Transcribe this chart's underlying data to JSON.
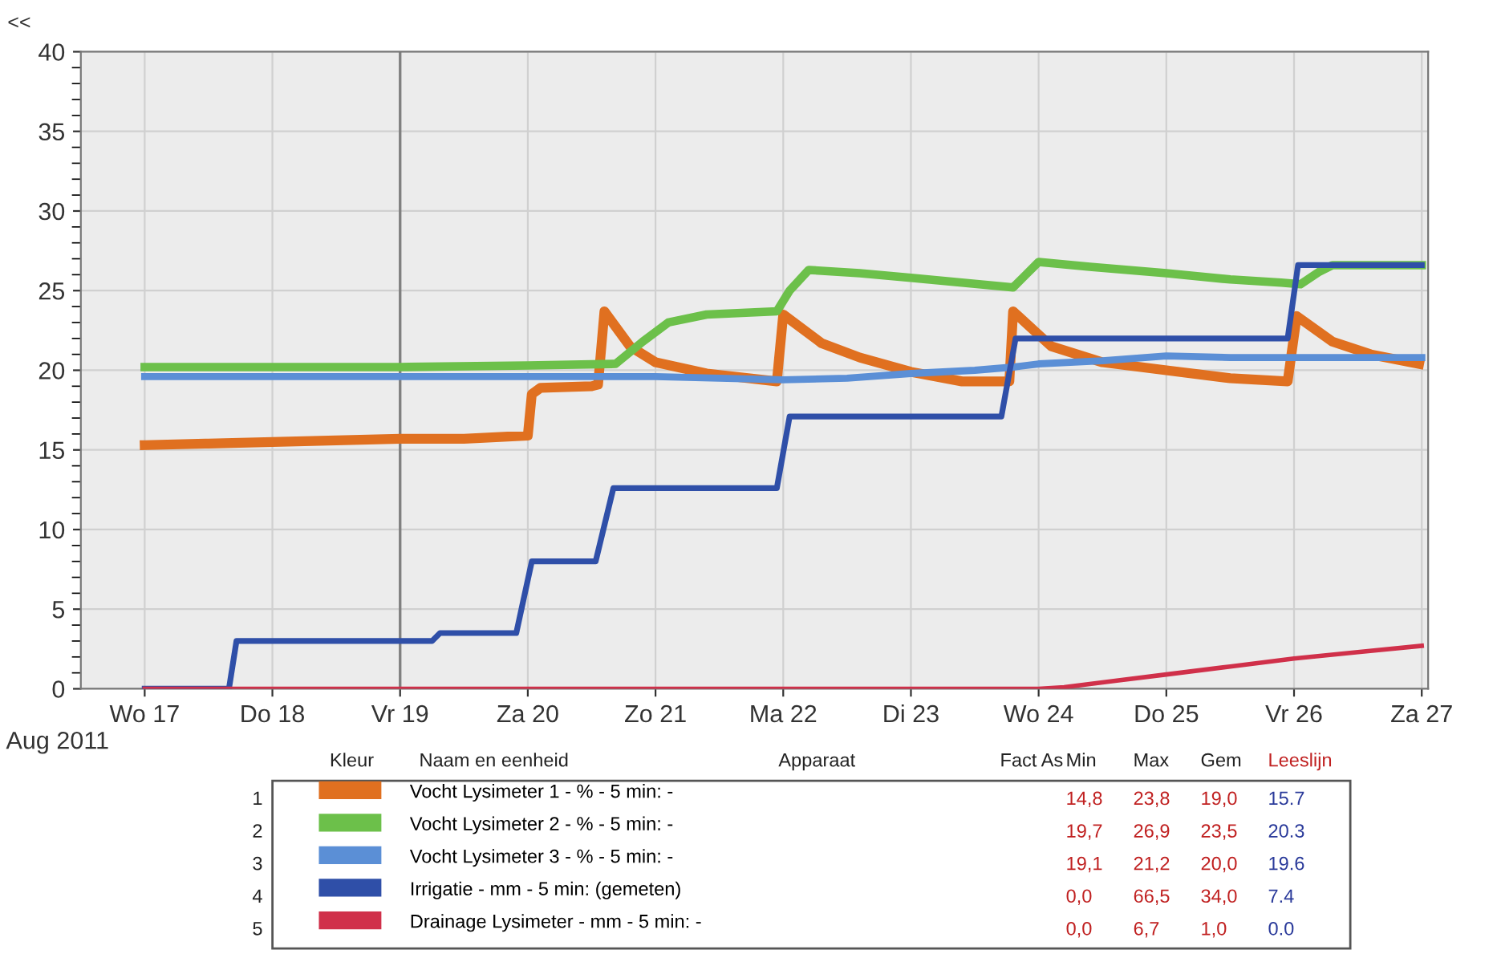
{
  "chart_data": {
    "type": "line",
    "xlim": [
      "2011-08-16T12:00",
      "2011-08-27T01:12"
    ],
    "ylim": [
      0,
      40
    ],
    "xticks": [
      {
        "value": "2011-08-17",
        "label": "Wo 17"
      },
      {
        "value": "2011-08-18",
        "label": "Do 18"
      },
      {
        "value": "2011-08-19",
        "label": "Vr 19"
      },
      {
        "value": "2011-08-20",
        "label": "Za 20"
      },
      {
        "value": "2011-08-21",
        "label": "Zo 21"
      },
      {
        "value": "2011-08-22",
        "label": "Ma 22"
      },
      {
        "value": "2011-08-23",
        "label": "Di 23"
      },
      {
        "value": "2011-08-24",
        "label": "Wo 24"
      },
      {
        "value": "2011-08-25",
        "label": "Do 25"
      },
      {
        "value": "2011-08-26",
        "label": "Vr 26"
      },
      {
        "value": "2011-08-27",
        "label": "Za 27"
      }
    ],
    "yticks": [
      0,
      5,
      10,
      15,
      20,
      25,
      30,
      35,
      40
    ],
    "grid": true,
    "legend": "bottom",
    "ref_lines": [
      {
        "axis": "x",
        "value": "2011-08-19",
        "color": "#808080"
      }
    ],
    "series": [
      {
        "name": "Vocht Lysimeter 1 - % - 5 min: -",
        "color": "#e07020",
        "x": [
          "2011-08-17",
          "2011-08-17T12:00",
          "2011-08-18",
          "2011-08-18T12:00",
          "2011-08-19",
          "2011-08-19T12:00",
          "2011-08-20",
          "2011-08-20T00:45",
          "2011-08-20T02:25",
          "2011-08-20T12:00",
          "2011-08-20T13:12",
          "2011-08-20T14:24",
          "2011-08-20T19:12",
          "2011-08-21",
          "2011-08-21T09:36",
          "2011-08-21T22:48",
          "2011-08-22",
          "2011-08-22T07:12",
          "2011-08-22T14:24",
          "2011-08-23",
          "2011-08-23T09:36",
          "2011-08-23T18:30",
          "2011-08-23T19:12",
          "2011-08-24T02:24",
          "2011-08-24T12:00",
          "2011-08-25",
          "2011-08-25T12:00",
          "2011-08-25T22:48",
          "2011-08-26T00:30",
          "2011-08-26T07:12",
          "2011-08-26T14:24",
          "2011-08-26T23:30"
        ],
        "values": [
          15.3,
          15.4,
          15.5,
          15.6,
          15.7,
          15.7,
          15.9,
          18.5,
          18.9,
          19.0,
          19.1,
          23.7,
          21.5,
          20.5,
          19.8,
          19.3,
          23.5,
          21.7,
          20.8,
          19.9,
          19.3,
          19.3,
          23.7,
          21.5,
          20.5,
          20.0,
          19.5,
          19.3,
          23.4,
          21.8,
          21.0,
          20.4
        ]
      },
      {
        "name": "Vocht Lysimeter 2 - % - 5 min: -",
        "color": "#6cc04a",
        "x": [
          "2011-08-17",
          "2011-08-18",
          "2011-08-19",
          "2011-08-20",
          "2011-08-20T16:30",
          "2011-08-20T21:36",
          "2011-08-21T02:24",
          "2011-08-21T09:36",
          "2011-08-21T22:48",
          "2011-08-22T01:12",
          "2011-08-22T04:48",
          "2011-08-22T14:24",
          "2011-08-23",
          "2011-08-23T09:36",
          "2011-08-23T19:12",
          "2011-08-23T21:36",
          "2011-08-24",
          "2011-08-24T09:36",
          "2011-08-25",
          "2011-08-25T12:00",
          "2011-08-25T21:36",
          "2011-08-26T01:12",
          "2011-08-26T04:48",
          "2011-08-26T07:12",
          "2011-08-26T14:24",
          "2011-08-27"
        ],
        "values": [
          20.2,
          20.2,
          20.2,
          20.3,
          20.4,
          21.8,
          23.0,
          23.5,
          23.7,
          25.0,
          26.3,
          26.1,
          25.8,
          25.5,
          25.2,
          26.0,
          26.8,
          26.5,
          26.1,
          25.7,
          25.5,
          25.4,
          26.2,
          26.6,
          26.6,
          26.6
        ]
      },
      {
        "name": "Vocht Lysimeter 3 - % - 5 min: -",
        "color": "#5b8fd6",
        "x": [
          "2011-08-17",
          "2011-08-18",
          "2011-08-19",
          "2011-08-20",
          "2011-08-21",
          "2011-08-21T12:00",
          "2011-08-22",
          "2011-08-22T12:00",
          "2011-08-23",
          "2011-08-23T12:00",
          "2011-08-23T19:12",
          "2011-08-24",
          "2011-08-24T12:00",
          "2011-08-25",
          "2011-08-25T12:00",
          "2011-08-26",
          "2011-08-26T12:00",
          "2011-08-27"
        ],
        "values": [
          19.6,
          19.6,
          19.6,
          19.6,
          19.6,
          19.5,
          19.4,
          19.5,
          19.8,
          20.0,
          20.2,
          20.4,
          20.6,
          20.9,
          20.8,
          20.8,
          20.8,
          20.8
        ]
      },
      {
        "name": "Irrigatie - mm - 5 min: (gemeten)",
        "color": "#2f4fa8",
        "x": [
          "2011-08-17",
          "2011-08-17T15:50",
          "2011-08-17T17:15",
          "2011-08-19T06:00",
          "2011-08-19T07:30",
          "2011-08-19T21:50",
          "2011-08-20T00:45",
          "2011-08-20T12:45",
          "2011-08-20T16:05",
          "2011-08-21T22:48",
          "2011-08-22T01:12",
          "2011-08-23T17:00",
          "2011-08-23T19:40",
          "2011-08-25T22:48",
          "2011-08-26T00:45",
          "2011-08-27"
        ],
        "values": [
          0,
          0,
          3.0,
          3.0,
          3.5,
          3.5,
          8.0,
          8.0,
          12.6,
          12.6,
          17.1,
          17.1,
          22.0,
          22.0,
          26.6,
          26.6
        ]
      },
      {
        "name": "Drainage Lysimeter - mm - 5 min: -",
        "color": "#d0304a",
        "x": [
          "2011-08-17",
          "2011-08-18",
          "2011-08-19",
          "2011-08-20",
          "2011-08-21",
          "2011-08-22",
          "2011-08-23",
          "2011-08-24",
          "2011-08-24T04:48",
          "2011-08-24T14:24",
          "2011-08-25",
          "2011-08-25T12:00",
          "2011-08-26",
          "2011-08-26T12:00",
          "2011-08-27"
        ],
        "values": [
          0,
          0,
          0,
          0,
          0,
          0,
          0,
          0,
          0.1,
          0.5,
          0.9,
          1.4,
          1.9,
          2.3,
          2.7
        ]
      }
    ],
    "annotations": [
      "<<",
      "Aug 2011",
      "Kleur",
      "Naam en eenheid",
      "Apparaat",
      "Fact As",
      "Min",
      "Max",
      "Gem",
      "Leeslijn",
      "1",
      "2",
      "3",
      "4",
      "5",
      "14,8",
      "23,8",
      "19,0",
      "15.7",
      "19,7",
      "26,9",
      "23,5",
      "20.3",
      "19,1",
      "21,2",
      "20,0",
      "19.6",
      "0,0",
      "66,5",
      "34,0",
      "7.4",
      "0,0",
      "6,7",
      "1,0",
      "0.0"
    ]
  }
}
